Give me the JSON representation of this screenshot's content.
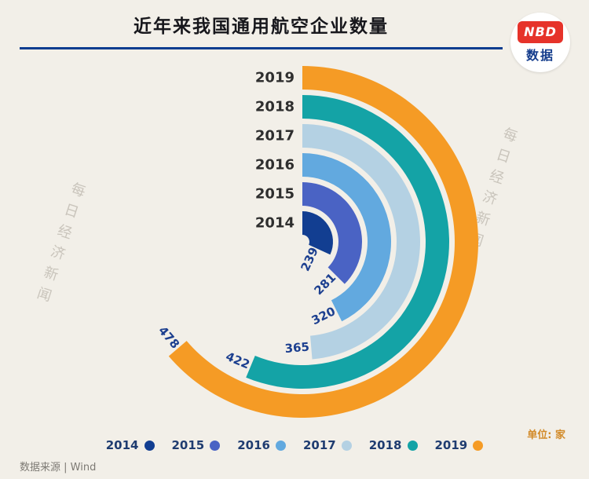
{
  "header": {
    "title": "近年来我国通用航空企业数量",
    "logo": {
      "line1": "NBD",
      "line2": "数据"
    }
  },
  "chart_data": {
    "type": "bar",
    "subtype": "radial-bar",
    "title": "近年来我国通用航空企业数量",
    "unit_label": "单位: 家",
    "categories": [
      "2014",
      "2015",
      "2016",
      "2017",
      "2018",
      "2019"
    ],
    "values": [
      239,
      281,
      320,
      365,
      422,
      478
    ],
    "colors": [
      "#123e91",
      "#4a63c4",
      "#62a9df",
      "#b4d1e3",
      "#14a3a6",
      "#f59b25"
    ],
    "start_angle": "12-o'clock",
    "direction": "clockwise",
    "legend_position": "bottom",
    "value_labels_shown": true,
    "accent_colors": {
      "title_rule": "#0b3c8f",
      "logo_red": "#e6332a",
      "logo_navy": "#143c8c",
      "value_text": "#1c3f8f",
      "unit_text": "#d28a28"
    }
  },
  "legend": {
    "items": [
      {
        "label": "2014",
        "color": "#123e91"
      },
      {
        "label": "2015",
        "color": "#4a63c4"
      },
      {
        "label": "2016",
        "color": "#62a9df"
      },
      {
        "label": "2017",
        "color": "#b4d1e3"
      },
      {
        "label": "2018",
        "color": "#14a3a6"
      },
      {
        "label": "2019",
        "color": "#f59b25"
      }
    ]
  },
  "footer": {
    "source": "数据来源 | Wind"
  },
  "watermark": {
    "text": "每日经济新闻"
  }
}
